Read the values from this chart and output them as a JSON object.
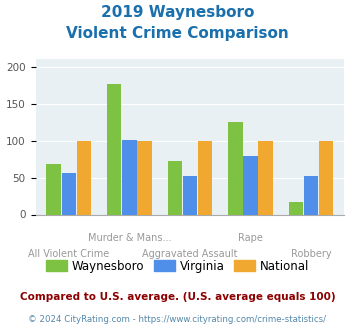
{
  "title_line1": "2019 Waynesboro",
  "title_line2": "Violent Crime Comparison",
  "categories": [
    "All Violent Crime",
    "Murder & Mans...",
    "Aggravated Assault",
    "Rape",
    "Robbery"
  ],
  "waynesboro": [
    68,
    177,
    72,
    125,
    17
  ],
  "virginia": [
    56,
    101,
    52,
    79,
    52
  ],
  "national": [
    100,
    100,
    100,
    100,
    100
  ],
  "color_waynesboro": "#7dc242",
  "color_virginia": "#4f8fea",
  "color_national": "#f0a830",
  "ylim": [
    0,
    210
  ],
  "yticks": [
    0,
    50,
    100,
    150,
    200
  ],
  "footnote1": "Compared to U.S. average. (U.S. average equals 100)",
  "footnote2": "© 2024 CityRating.com - https://www.cityrating.com/crime-statistics/",
  "bg_color": "#e8f0f3",
  "title_color": "#1a6fad",
  "footnote1_color": "#8b0000",
  "footnote2_color": "#5588aa"
}
